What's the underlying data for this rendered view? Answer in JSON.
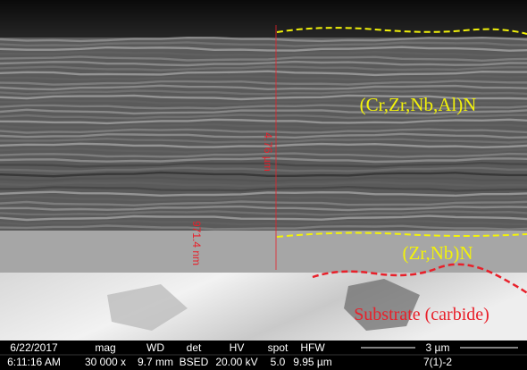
{
  "image": {
    "labels": {
      "coating": "(Cr,Zr,Nb,Al)N",
      "interlayer": "(Zr,Nb)N",
      "substrate": "Substrate (carbide)"
    },
    "measurements": {
      "total": "4.76 µm",
      "interlayer": "971.4 nm"
    },
    "info_bar": {
      "date": "6/22/2017",
      "time": "6:11:16 AM",
      "mag_label": "mag",
      "mag": "30 000 x",
      "wd_label": "WD",
      "wd": "9.7 mm",
      "det_label": "det",
      "det": "BSED",
      "hv_label": "HV",
      "hv": "20.00 kV",
      "spot_label": "spot",
      "spot": "5.0",
      "hfw_label": "HFW",
      "hfw": "9.95 µm",
      "scale": "3 µm",
      "sample": "7(1)-2"
    }
  }
}
